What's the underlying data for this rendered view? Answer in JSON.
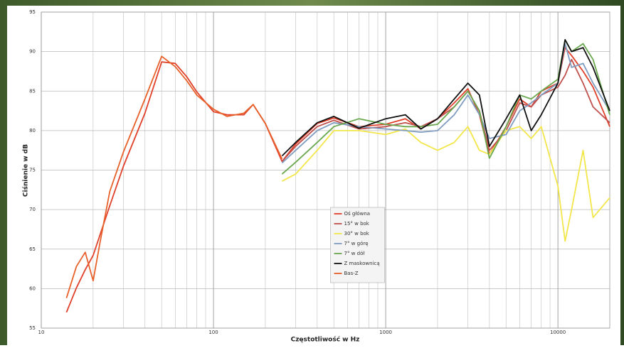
{
  "chart_data": {
    "type": "line",
    "x_label": "Częstotliwość w Hz",
    "y_label": "Ciśnienie w dB",
    "x_log": true,
    "grid": true,
    "legend": "center",
    "xlim": [
      10,
      20000
    ],
    "ylim": [
      55,
      95
    ],
    "xticks": [
      10,
      100,
      1000,
      10000
    ],
    "yticks": [
      55,
      60,
      65,
      70,
      75,
      80,
      85,
      90,
      95
    ],
    "x": [
      14,
      16,
      18,
      20,
      22,
      25,
      30,
      40,
      50,
      60,
      70,
      80,
      100,
      120,
      150,
      170,
      200,
      250,
      300,
      400,
      500,
      700,
      1000,
      1300,
      1600,
      2000,
      2500,
      3000,
      3500,
      4000,
      5000,
      6000,
      7000,
      8000,
      10000,
      11000,
      12000,
      14000,
      16000,
      20000
    ],
    "series": [
      {
        "name": "Oś główna",
        "color": "#e0402a",
        "values": [
          57,
          60.1,
          62.4,
          64.2,
          66.9,
          70.5,
          75.5,
          82.2,
          88.7,
          88.5,
          86.8,
          84.9,
          82.4,
          82,
          82,
          83.3,
          80.9,
          76.1,
          78.3,
          80.9,
          81.6,
          80.5,
          80.8,
          81.5,
          80.2,
          81.5,
          83.5,
          85.3,
          82,
          77,
          80.5,
          84,
          83,
          85,
          86,
          90.5,
          89.5,
          87.5,
          85.5,
          80.5
        ]
      },
      {
        "name": "15° w bok",
        "color": "#c0504d",
        "values": [
          null,
          null,
          null,
          null,
          null,
          null,
          null,
          null,
          null,
          null,
          null,
          null,
          null,
          null,
          null,
          null,
          null,
          76.1,
          78,
          80.5,
          81.3,
          80.2,
          80.5,
          81,
          80.5,
          81.5,
          83,
          85,
          82.5,
          77.5,
          80,
          83.5,
          83,
          84.5,
          85.5,
          87,
          89,
          86,
          83,
          81
        ]
      },
      {
        "name": "30° w bok",
        "color": "#f2e64a",
        "values": [
          null,
          null,
          null,
          null,
          null,
          null,
          null,
          null,
          null,
          null,
          null,
          null,
          null,
          null,
          null,
          null,
          null,
          73.6,
          74.5,
          77.5,
          80,
          80,
          79.5,
          80.2,
          78.5,
          77.5,
          78.5,
          80.5,
          77.5,
          77,
          80,
          80.5,
          79,
          80.5,
          73,
          66,
          70,
          77.5,
          69,
          71.5
        ]
      },
      {
        "name": "7° w górę",
        "color": "#7f9cc0",
        "values": [
          null,
          null,
          null,
          null,
          null,
          null,
          null,
          null,
          null,
          null,
          null,
          null,
          null,
          null,
          null,
          null,
          null,
          75.9,
          77.5,
          80,
          81,
          80.5,
          80.2,
          80,
          79.8,
          80,
          82,
          84.5,
          82,
          79,
          79.5,
          82.5,
          83.5,
          84.5,
          86,
          91,
          88,
          88.5,
          86,
          82.5
        ]
      },
      {
        "name": "7° w dół",
        "color": "#6aa84f",
        "values": [
          null,
          null,
          null,
          null,
          null,
          null,
          null,
          null,
          null,
          null,
          null,
          null,
          null,
          null,
          null,
          null,
          null,
          74.5,
          76,
          78.5,
          80.5,
          81.5,
          80.8,
          80.5,
          80.5,
          80.8,
          83,
          85,
          82.5,
          76.5,
          80.5,
          84.5,
          84,
          85,
          86.5,
          91.5,
          90,
          91,
          89,
          82
        ]
      },
      {
        "name": "Z maskownicą",
        "color": "#111111",
        "values": [
          null,
          null,
          null,
          null,
          null,
          null,
          null,
          null,
          null,
          null,
          null,
          null,
          null,
          null,
          null,
          null,
          null,
          76.8,
          78.5,
          81,
          81.8,
          80.3,
          81.5,
          82,
          80.2,
          81.5,
          84,
          86,
          84.5,
          78,
          81.5,
          84.5,
          80,
          82,
          86,
          91.5,
          90,
          90.5,
          88,
          82.5
        ]
      },
      {
        "name": "Bas-Z",
        "color": "#e8602a",
        "values": [
          58.8,
          62.8,
          64.6,
          61,
          66,
          72.3,
          77.3,
          84,
          89.4,
          88.1,
          86.3,
          84.5,
          82.7,
          81.8,
          82.2,
          83.3,
          80.9,
          76.4,
          null,
          null,
          null,
          null,
          null,
          null,
          null,
          null,
          null,
          null,
          null,
          null,
          null,
          null,
          null,
          null,
          null,
          null,
          null,
          null,
          null,
          null
        ]
      }
    ]
  }
}
